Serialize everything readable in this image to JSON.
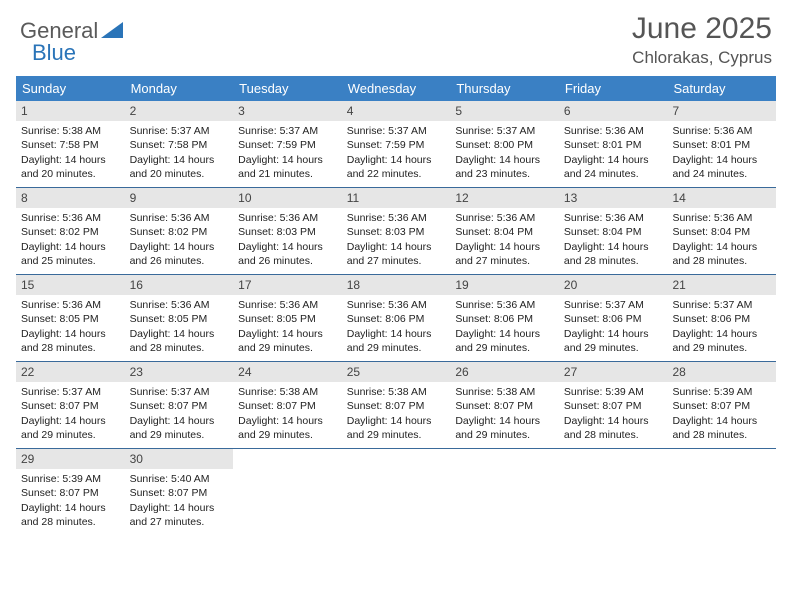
{
  "logo": {
    "part1": "General",
    "part2": "Blue"
  },
  "title": "June 2025",
  "location": "Chlorakas, Cyprus",
  "header_bg": "#3a80c4",
  "week_border": "#3a6a9a",
  "daynum_bg": "#e6e6e6",
  "page_bg": "#ffffff",
  "text_color": "#222222",
  "day_names": [
    "Sunday",
    "Monday",
    "Tuesday",
    "Wednesday",
    "Thursday",
    "Friday",
    "Saturday"
  ],
  "weeks": [
    [
      {
        "n": "1",
        "sr": "5:38 AM",
        "ss": "7:58 PM",
        "dl": "14 hours and 20 minutes."
      },
      {
        "n": "2",
        "sr": "5:37 AM",
        "ss": "7:58 PM",
        "dl": "14 hours and 20 minutes."
      },
      {
        "n": "3",
        "sr": "5:37 AM",
        "ss": "7:59 PM",
        "dl": "14 hours and 21 minutes."
      },
      {
        "n": "4",
        "sr": "5:37 AM",
        "ss": "7:59 PM",
        "dl": "14 hours and 22 minutes."
      },
      {
        "n": "5",
        "sr": "5:37 AM",
        "ss": "8:00 PM",
        "dl": "14 hours and 23 minutes."
      },
      {
        "n": "6",
        "sr": "5:36 AM",
        "ss": "8:01 PM",
        "dl": "14 hours and 24 minutes."
      },
      {
        "n": "7",
        "sr": "5:36 AM",
        "ss": "8:01 PM",
        "dl": "14 hours and 24 minutes."
      }
    ],
    [
      {
        "n": "8",
        "sr": "5:36 AM",
        "ss": "8:02 PM",
        "dl": "14 hours and 25 minutes."
      },
      {
        "n": "9",
        "sr": "5:36 AM",
        "ss": "8:02 PM",
        "dl": "14 hours and 26 minutes."
      },
      {
        "n": "10",
        "sr": "5:36 AM",
        "ss": "8:03 PM",
        "dl": "14 hours and 26 minutes."
      },
      {
        "n": "11",
        "sr": "5:36 AM",
        "ss": "8:03 PM",
        "dl": "14 hours and 27 minutes."
      },
      {
        "n": "12",
        "sr": "5:36 AM",
        "ss": "8:04 PM",
        "dl": "14 hours and 27 minutes."
      },
      {
        "n": "13",
        "sr": "5:36 AM",
        "ss": "8:04 PM",
        "dl": "14 hours and 28 minutes."
      },
      {
        "n": "14",
        "sr": "5:36 AM",
        "ss": "8:04 PM",
        "dl": "14 hours and 28 minutes."
      }
    ],
    [
      {
        "n": "15",
        "sr": "5:36 AM",
        "ss": "8:05 PM",
        "dl": "14 hours and 28 minutes."
      },
      {
        "n": "16",
        "sr": "5:36 AM",
        "ss": "8:05 PM",
        "dl": "14 hours and 28 minutes."
      },
      {
        "n": "17",
        "sr": "5:36 AM",
        "ss": "8:05 PM",
        "dl": "14 hours and 29 minutes."
      },
      {
        "n": "18",
        "sr": "5:36 AM",
        "ss": "8:06 PM",
        "dl": "14 hours and 29 minutes."
      },
      {
        "n": "19",
        "sr": "5:36 AM",
        "ss": "8:06 PM",
        "dl": "14 hours and 29 minutes."
      },
      {
        "n": "20",
        "sr": "5:37 AM",
        "ss": "8:06 PM",
        "dl": "14 hours and 29 minutes."
      },
      {
        "n": "21",
        "sr": "5:37 AM",
        "ss": "8:06 PM",
        "dl": "14 hours and 29 minutes."
      }
    ],
    [
      {
        "n": "22",
        "sr": "5:37 AM",
        "ss": "8:07 PM",
        "dl": "14 hours and 29 minutes."
      },
      {
        "n": "23",
        "sr": "5:37 AM",
        "ss": "8:07 PM",
        "dl": "14 hours and 29 minutes."
      },
      {
        "n": "24",
        "sr": "5:38 AM",
        "ss": "8:07 PM",
        "dl": "14 hours and 29 minutes."
      },
      {
        "n": "25",
        "sr": "5:38 AM",
        "ss": "8:07 PM",
        "dl": "14 hours and 29 minutes."
      },
      {
        "n": "26",
        "sr": "5:38 AM",
        "ss": "8:07 PM",
        "dl": "14 hours and 29 minutes."
      },
      {
        "n": "27",
        "sr": "5:39 AM",
        "ss": "8:07 PM",
        "dl": "14 hours and 28 minutes."
      },
      {
        "n": "28",
        "sr": "5:39 AM",
        "ss": "8:07 PM",
        "dl": "14 hours and 28 minutes."
      }
    ],
    [
      {
        "n": "29",
        "sr": "5:39 AM",
        "ss": "8:07 PM",
        "dl": "14 hours and 28 minutes."
      },
      {
        "n": "30",
        "sr": "5:40 AM",
        "ss": "8:07 PM",
        "dl": "14 hours and 27 minutes."
      },
      null,
      null,
      null,
      null,
      null
    ]
  ],
  "labels": {
    "sunrise": "Sunrise: ",
    "sunset": "Sunset: ",
    "daylight": "Daylight: "
  }
}
